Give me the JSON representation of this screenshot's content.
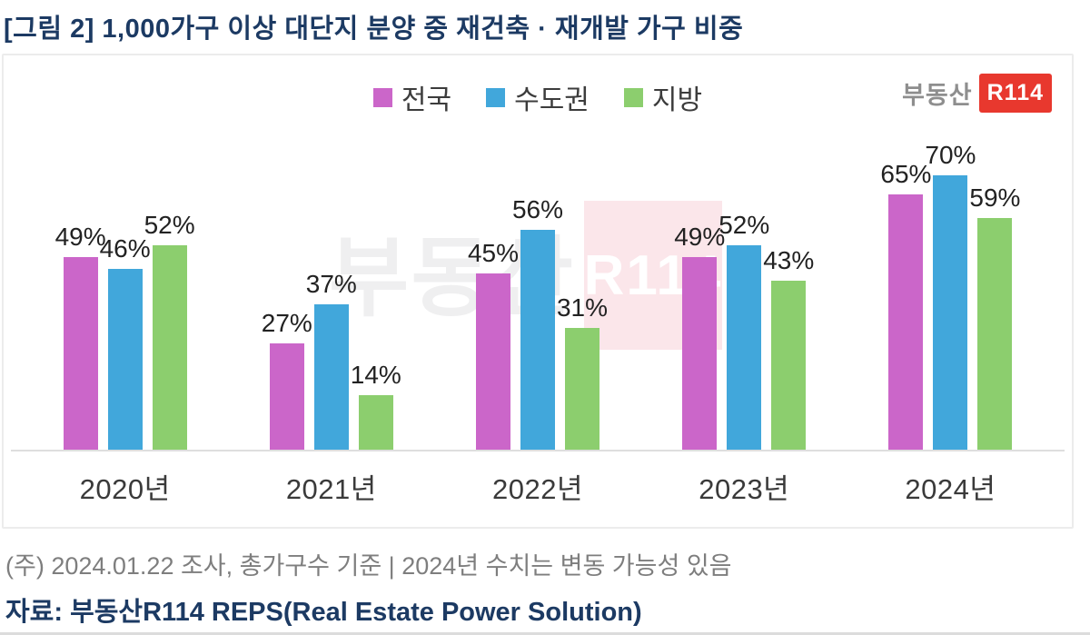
{
  "page": {
    "title": "[그림 2] 1,000가구 이상 대단지 분양 중 재건축 · 재개발 가구 비중",
    "note": "(주) 2024.01.22 조사, 총가구수 기준 | 2024년 수치는 변동 가능성 있음",
    "source": "자료: 부동산R114  REPS(Real Estate Power Solution)"
  },
  "logo": {
    "prefix": "부동산",
    "badge": "R114"
  },
  "watermark": {
    "prefix": "부동산",
    "badge": "R114"
  },
  "chart_data": {
    "type": "bar",
    "title": "1,000가구 이상 대단지 분양 중 재건축 · 재개발 가구 비중",
    "categories": [
      "2020년",
      "2021년",
      "2022년",
      "2023년",
      "2024년"
    ],
    "series": [
      {
        "name": "전국",
        "color": "#cb66c9",
        "values": [
          49,
          27,
          45,
          49,
          65
        ]
      },
      {
        "name": "수도권",
        "color": "#41a7db",
        "values": [
          46,
          37,
          56,
          52,
          70
        ]
      },
      {
        "name": "지방",
        "color": "#8cce6e",
        "values": [
          52,
          14,
          31,
          43,
          59
        ]
      }
    ],
    "value_suffix": "%",
    "ylim": [
      0,
      100
    ],
    "grid": false,
    "legend_position": "top-center",
    "value_labels": true
  },
  "colors": {
    "title_navy": "#1c3a63",
    "brand_red": "#e8382e",
    "note_gray": "#7e7e7e",
    "axis_line": "#dedede",
    "frame_border": "#ececec",
    "watermark_pink": "#fbe6ea"
  }
}
